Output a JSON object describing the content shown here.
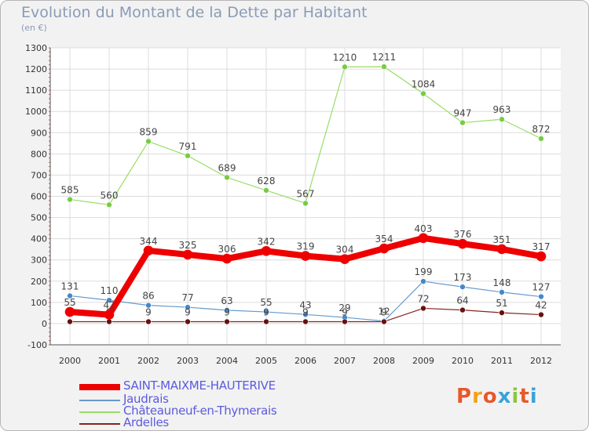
{
  "header": {
    "title": "Evolution du Montant de la Dette par Habitant",
    "subtitle": "(en €)"
  },
  "logo": {
    "text": "Proxiti",
    "colors": [
      "#e8582a",
      "#f4a019",
      "#e8582a",
      "#3aa3d8",
      "#8cc63f",
      "#e8582a",
      "#3aa3d8"
    ]
  },
  "chart_data": {
    "type": "line",
    "title": "Evolution du Montant de la Dette par Habitant",
    "subtitle": "(en €)",
    "xlabel": "",
    "ylabel": "",
    "x": [
      "2000",
      "2001",
      "2002",
      "2003",
      "2004",
      "2005",
      "2006",
      "2007",
      "2008",
      "2009",
      "2010",
      "2011",
      "2012"
    ],
    "ylim": [
      -100,
      1300
    ],
    "yticks": [
      -100,
      0,
      100,
      200,
      300,
      400,
      500,
      600,
      700,
      800,
      900,
      1000,
      1100,
      1200,
      1300
    ],
    "grid": true,
    "legend_position": "bottom-left",
    "series": [
      {
        "name": "Châteauneuf-en-Thymerais",
        "color": "#99dd66",
        "values": [
          585,
          560,
          859,
          791,
          689,
          628,
          567,
          1210,
          1211,
          1084,
          947,
          963,
          872
        ]
      },
      {
        "name": "Jaudrais",
        "color": "#6699cc",
        "values": [
          131,
          110,
          86,
          77,
          63,
          55,
          43,
          29,
          12,
          199,
          173,
          148,
          127
        ]
      },
      {
        "name": "Ardelles",
        "color": "#882222",
        "values": [
          9,
          9,
          9,
          9,
          9,
          9,
          9,
          9,
          9,
          72,
          64,
          51,
          42
        ]
      },
      {
        "name": "SAINT-MAIXME-HAUTERIVE",
        "color": "#ee0000",
        "values": [
          55,
          42,
          344,
          325,
          306,
          342,
          319,
          304,
          354,
          403,
          376,
          351,
          317
        ]
      }
    ],
    "legend_order": [
      "SAINT-MAIXME-HAUTERIVE",
      "Jaudrais",
      "Châteauneuf-en-Thymerais",
      "Ardelles"
    ]
  }
}
